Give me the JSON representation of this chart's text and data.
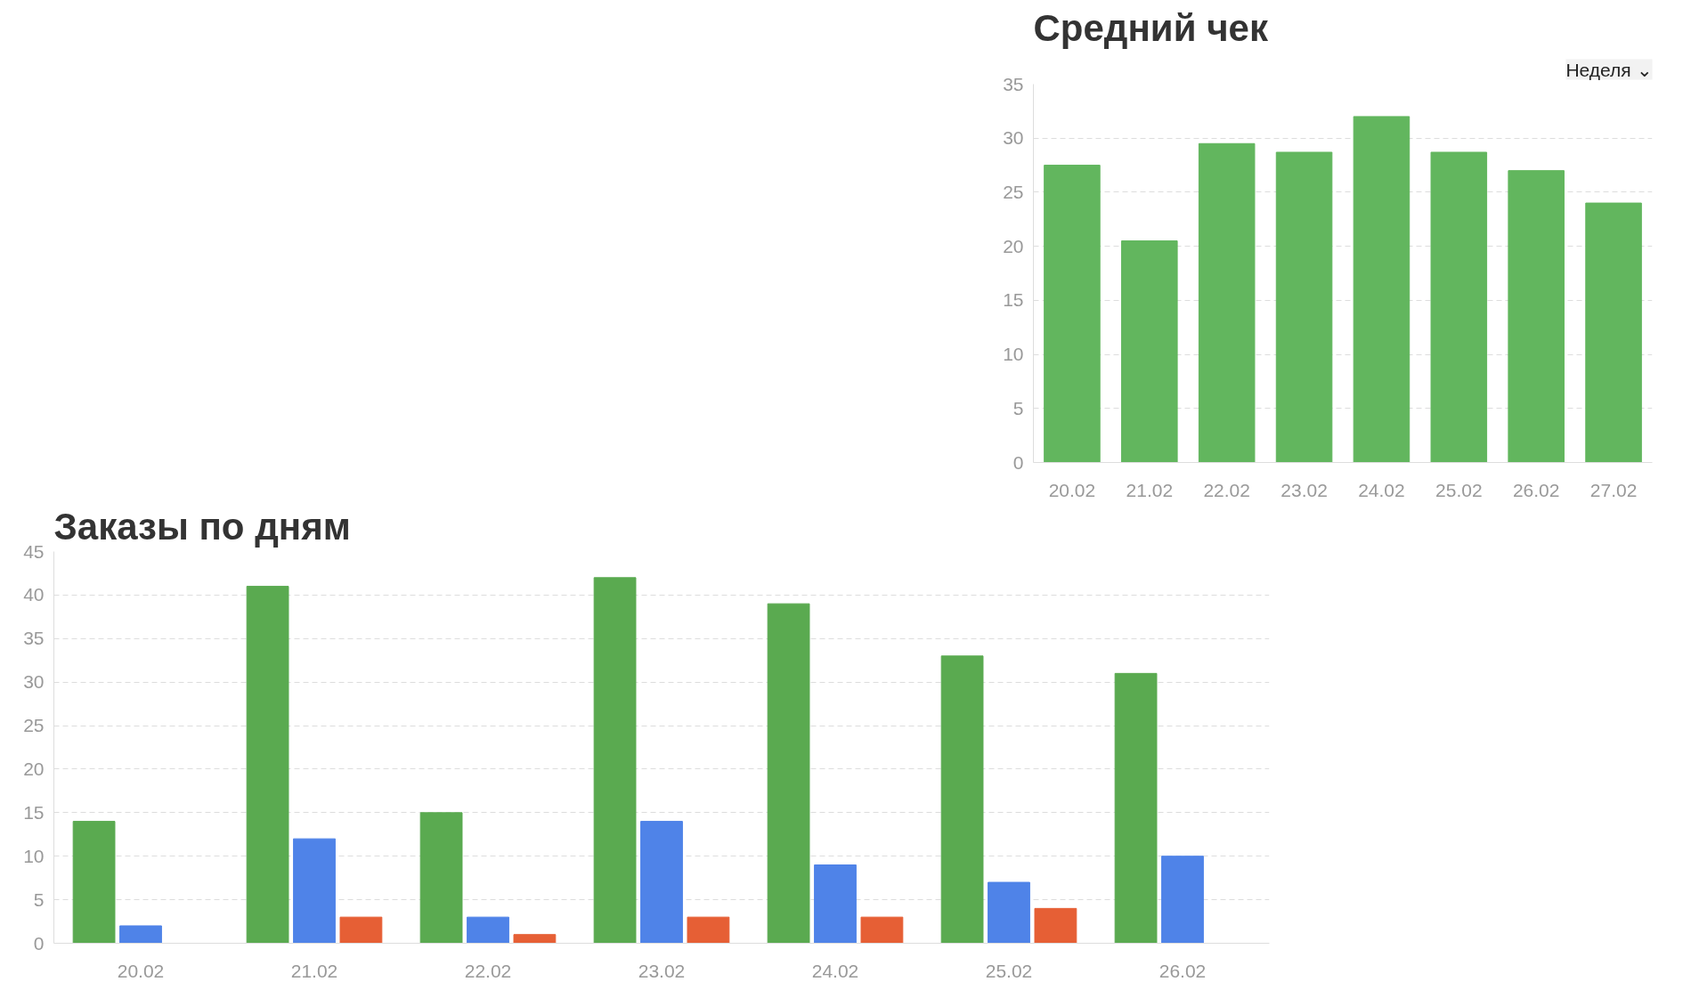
{
  "chart_data": [
    {
      "type": "bar",
      "title": "Средний чек",
      "annotations": [
        "Неделя ⌄"
      ],
      "categories": [
        "20.02",
        "21.02",
        "22.02",
        "23.02",
        "24.02",
        "25.02",
        "26.02",
        "27.02"
      ],
      "series": [
        {
          "color": "#62b65e",
          "values": [
            27.5,
            20.5,
            29.5,
            28.7,
            32,
            28.7,
            27,
            24
          ]
        }
      ],
      "ylim": [
        0,
        35
      ],
      "yticks": [
        0,
        5,
        10,
        15,
        20,
        25,
        30,
        35
      ],
      "grid": "y"
    },
    {
      "type": "bar",
      "title": "Заказы по дням",
      "categories": [
        "20.02",
        "21.02",
        "22.02",
        "23.02",
        "24.02",
        "25.02",
        "26.02"
      ],
      "series": [
        {
          "color": "#5aaa50",
          "values": [
            14,
            41,
            15,
            42,
            39,
            33,
            31
          ]
        },
        {
          "color": "#4f83e8",
          "values": [
            2,
            12,
            3,
            14,
            9,
            7,
            10
          ]
        },
        {
          "color": "#e65f35",
          "values": [
            null,
            3,
            1,
            3,
            3,
            4,
            null
          ]
        }
      ],
      "ylim": [
        0,
        45
      ],
      "yticks": [
        0,
        5,
        10,
        15,
        20,
        25,
        30,
        35,
        40,
        45
      ],
      "grid": "y"
    }
  ]
}
